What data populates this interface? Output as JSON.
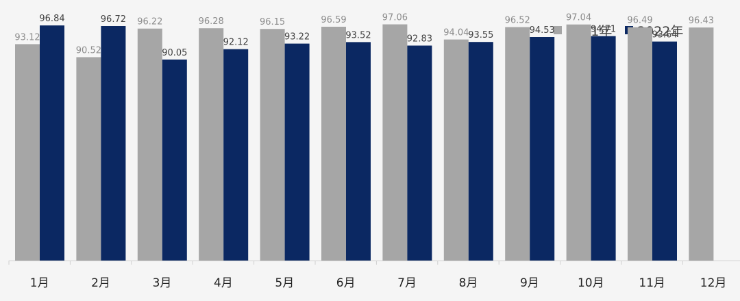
{
  "chart_data": {
    "type": "bar",
    "categories": [
      "1月",
      "2月",
      "3月",
      "4月",
      "5月",
      "6月",
      "7月",
      "8月",
      "9月",
      "10月",
      "11月",
      "12月"
    ],
    "series": [
      {
        "name": "2021年",
        "color": "#a6a6a6",
        "values": [
          93.12,
          90.52,
          96.22,
          96.28,
          96.15,
          96.59,
          97.06,
          94.04,
          96.52,
          97.04,
          96.49,
          96.43
        ],
        "labels": [
          "93.12",
          "90.52",
          "96.22",
          "96.28",
          "96.15",
          "96.59",
          "97.06",
          "94.04",
          "96.52",
          "97.04",
          "96.49",
          "96.43"
        ]
      },
      {
        "name": "2022年",
        "color": "#0b2862",
        "values": [
          96.84,
          96.72,
          90.05,
          92.12,
          93.22,
          93.52,
          92.83,
          93.55,
          94.53,
          94.71,
          93.64,
          null
        ],
        "labels": [
          "96.84",
          "96.72",
          "90.05",
          "92.12",
          "93.22",
          "93.52",
          "92.83",
          "93.55",
          "94.53",
          "94.71",
          "93.64",
          ""
        ]
      }
    ],
    "title": "",
    "xlabel": "",
    "ylabel": "",
    "ylim": [
      50,
      100
    ],
    "grid": false,
    "legend": "top-right"
  }
}
